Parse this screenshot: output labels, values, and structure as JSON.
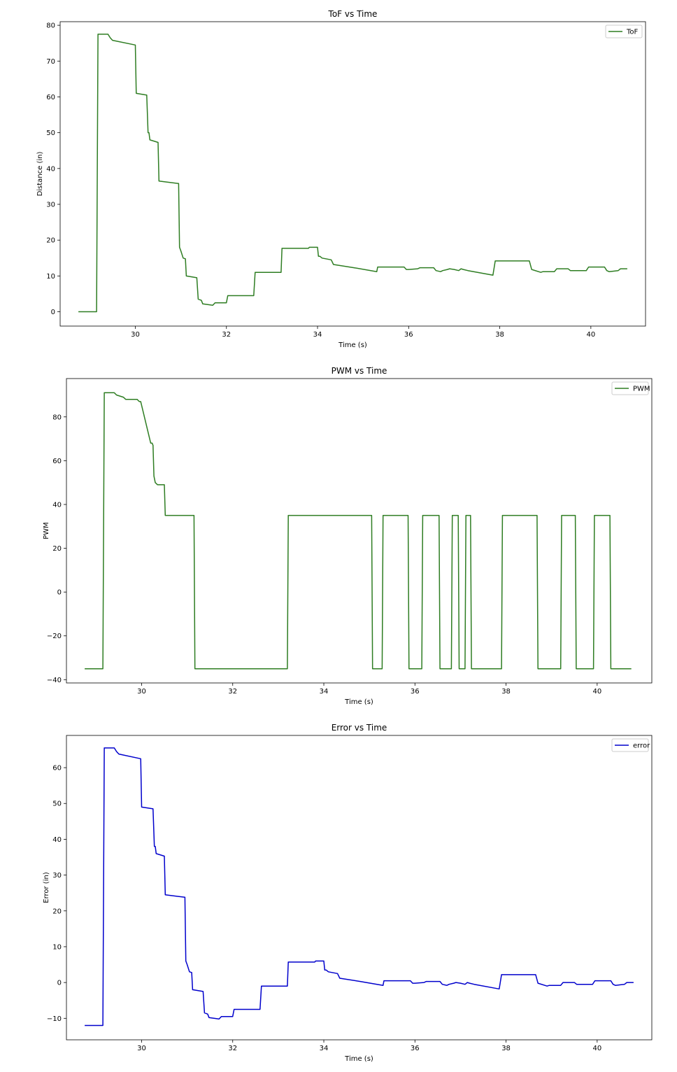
{
  "chart_data": [
    {
      "type": "line",
      "title": "ToF vs Time",
      "xlabel": "Time (s)",
      "ylabel": "Distance (in)",
      "xlim": [
        28.35,
        41.2
      ],
      "ylim": [
        -4,
        81
      ],
      "xticks": [
        30,
        32,
        34,
        36,
        38,
        40
      ],
      "yticks": [
        0,
        10,
        20,
        30,
        40,
        50,
        60,
        70,
        80
      ],
      "legend_position": "top-right",
      "grid": false,
      "series": [
        {
          "name": "ToF",
          "color": "#2e7d22",
          "x": [
            28.75,
            29.15,
            29.18,
            29.4,
            29.45,
            29.5,
            30.0,
            30.02,
            30.25,
            30.28,
            30.3,
            30.32,
            30.5,
            30.52,
            30.95,
            30.97,
            31.0,
            31.05,
            31.1,
            31.12,
            31.35,
            31.38,
            31.45,
            31.48,
            31.7,
            31.75,
            32.0,
            32.03,
            32.6,
            32.63,
            33.2,
            33.22,
            33.8,
            33.82,
            34.0,
            34.02,
            34.05,
            34.1,
            34.3,
            34.35,
            34.8,
            35.3,
            35.32,
            35.9,
            35.95,
            36.0,
            36.2,
            36.25,
            36.55,
            36.6,
            36.7,
            36.75,
            36.85,
            36.9,
            37.0,
            37.1,
            37.15,
            37.2,
            37.3,
            37.85,
            37.9,
            38.65,
            38.7,
            38.9,
            38.95,
            39.2,
            39.25,
            39.5,
            39.55,
            39.9,
            39.95,
            40.3,
            40.35,
            40.4,
            40.6,
            40.65,
            40.8
          ],
          "y": [
            0,
            0,
            77.5,
            77.5,
            76.5,
            75.8,
            74.5,
            61,
            60.5,
            50,
            50,
            48,
            47.3,
            36.5,
            35.8,
            18,
            17,
            15,
            14.8,
            10,
            9.5,
            3.5,
            3.2,
            2.2,
            1.8,
            2.5,
            2.5,
            4.5,
            4.5,
            11,
            11,
            17.7,
            17.7,
            18,
            18,
            15.5,
            15.5,
            15,
            14.5,
            13.2,
            12.3,
            11.2,
            12.5,
            12.5,
            11.8,
            11.8,
            12,
            12.3,
            12.3,
            11.5,
            11.2,
            11.5,
            11.8,
            12,
            11.8,
            11.5,
            12,
            11.8,
            11.5,
            10.2,
            14.2,
            14.2,
            11.8,
            11,
            11.2,
            11.2,
            12,
            12,
            11.5,
            11.5,
            12.5,
            12.5,
            11.5,
            11.2,
            11.5,
            12,
            12
          ]
        }
      ]
    },
    {
      "type": "line",
      "title": "PWM vs Time",
      "xlabel": "Time (s)",
      "ylabel": "PWM",
      "xlim": [
        28.35,
        41.2
      ],
      "ylim": [
        -41.5,
        97.5
      ],
      "xticks": [
        30,
        32,
        34,
        36,
        38,
        40
      ],
      "yticks": [
        -40,
        -20,
        0,
        20,
        40,
        60,
        80
      ],
      "legend_position": "top-right",
      "grid": false,
      "series": [
        {
          "name": "PWM",
          "color": "#2e7d22",
          "x": [
            28.75,
            29.15,
            29.18,
            29.4,
            29.45,
            29.6,
            29.65,
            29.9,
            29.95,
            29.98,
            30.2,
            30.23,
            30.25,
            30.27,
            30.3,
            30.35,
            30.5,
            30.52,
            31.15,
            31.17,
            33.2,
            33.22,
            35.05,
            35.07,
            35.28,
            35.3,
            35.85,
            35.87,
            36.15,
            36.17,
            36.53,
            36.55,
            36.8,
            36.82,
            36.95,
            36.97,
            37.1,
            37.12,
            37.22,
            37.24,
            37.9,
            37.92,
            38.68,
            38.7,
            39.2,
            39.22,
            39.52,
            39.54,
            39.92,
            39.94,
            40.28,
            40.3,
            40.75
          ],
          "y": [
            -35,
            -35,
            91,
            91,
            90,
            89,
            88,
            88,
            87,
            87,
            68,
            68,
            67,
            53,
            50,
            49,
            49,
            35,
            35,
            -35,
            -35,
            35,
            35,
            -35,
            -35,
            35,
            35,
            -35,
            -35,
            35,
            35,
            -35,
            -35,
            35,
            35,
            -35,
            -35,
            35,
            35,
            -35,
            -35,
            35,
            35,
            -35,
            -35,
            35,
            35,
            -35,
            -35,
            35,
            35,
            -35,
            -35
          ]
        }
      ]
    },
    {
      "type": "line",
      "title": "Error vs Time",
      "xlabel": "Time (s)",
      "ylabel": "Error (in)",
      "xlim": [
        28.35,
        41.2
      ],
      "ylim": [
        -16,
        69
      ],
      "xticks": [
        30,
        32,
        34,
        36,
        38,
        40
      ],
      "yticks": [
        -10,
        0,
        10,
        20,
        30,
        40,
        50,
        60
      ],
      "legend_position": "top-right",
      "grid": false,
      "series": [
        {
          "name": "error",
          "color": "#0000cc",
          "x": [
            28.75,
            29.15,
            29.18,
            29.4,
            29.45,
            29.5,
            29.98,
            30.0,
            30.25,
            30.28,
            30.3,
            30.32,
            30.5,
            30.52,
            30.95,
            30.97,
            31.0,
            31.05,
            31.1,
            31.12,
            31.35,
            31.38,
            31.45,
            31.48,
            31.7,
            31.75,
            32.0,
            32.03,
            32.6,
            32.63,
            33.2,
            33.22,
            33.8,
            33.82,
            34.0,
            34.02,
            34.05,
            34.1,
            34.3,
            34.35,
            34.8,
            35.3,
            35.32,
            35.9,
            35.95,
            36.0,
            36.2,
            36.25,
            36.55,
            36.6,
            36.7,
            36.75,
            36.85,
            36.9,
            37.0,
            37.1,
            37.15,
            37.2,
            37.3,
            37.85,
            37.9,
            38.65,
            38.7,
            38.9,
            38.95,
            39.2,
            39.25,
            39.5,
            39.55,
            39.9,
            39.95,
            40.3,
            40.35,
            40.4,
            40.6,
            40.65,
            40.8
          ],
          "y": [
            -12,
            -12,
            65.5,
            65.5,
            64.5,
            63.8,
            62.5,
            49,
            48.5,
            38,
            38,
            36,
            35.3,
            24.5,
            23.8,
            6,
            5,
            3,
            2.8,
            -2,
            -2.5,
            -8.5,
            -8.8,
            -9.8,
            -10.2,
            -9.5,
            -9.5,
            -7.5,
            -7.5,
            -1,
            -1,
            5.7,
            5.7,
            6,
            6,
            3.5,
            3.5,
            3,
            2.5,
            1.2,
            0.3,
            -0.8,
            0.5,
            0.5,
            -0.2,
            -0.2,
            0,
            0.3,
            0.3,
            -0.5,
            -0.8,
            -0.5,
            -0.2,
            0,
            -0.2,
            -0.5,
            0,
            -0.2,
            -0.5,
            -1.8,
            2.2,
            2.2,
            -0.2,
            -1,
            -0.8,
            -0.8,
            0,
            0,
            -0.5,
            -0.5,
            0.5,
            0.5,
            -0.5,
            -0.8,
            -0.5,
            0,
            0
          ]
        }
      ]
    }
  ]
}
